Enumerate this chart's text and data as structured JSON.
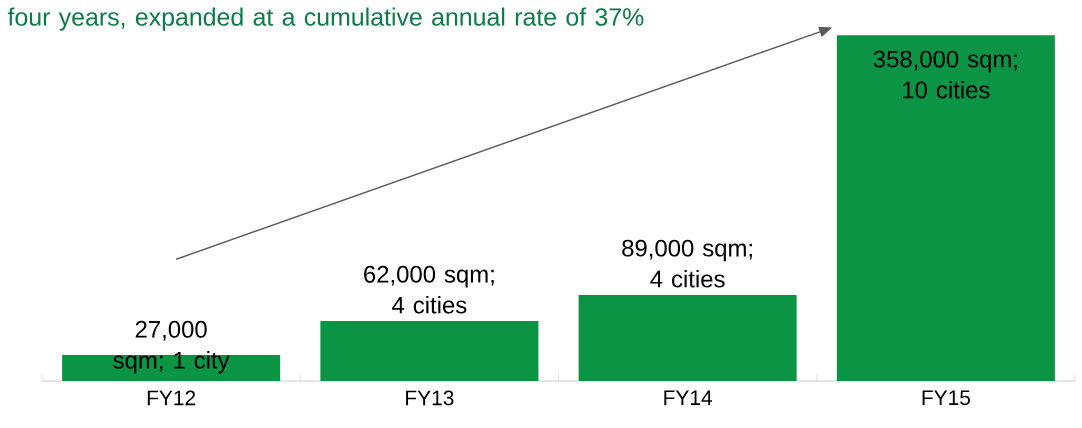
{
  "chart_data": {
    "type": "bar",
    "categories": [
      "FY12",
      "FY13",
      "FY14",
      "FY15"
    ],
    "values": [
      27000,
      62000,
      89000,
      358000
    ],
    "value_labels": [
      "27,000 sqm; 1 city",
      "62,000 sqm; 4 cities",
      "89,000 sqm; 4 cities",
      "358,000 sqm; 10 cities"
    ],
    "color": "#0a9444",
    "annotations": [
      "four years, expanded at a cumulative annual rate of 37%"
    ],
    "legend": false
  }
}
